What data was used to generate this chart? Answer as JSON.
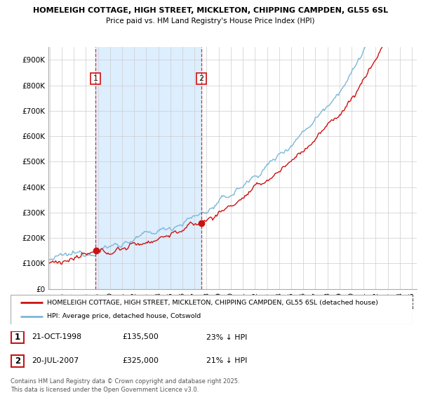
{
  "title_line1": "HOMELEIGH COTTAGE, HIGH STREET, MICKLETON, CHIPPING CAMPDEN, GL55 6SL",
  "title_line2": "Price paid vs. HM Land Registry's House Price Index (HPI)",
  "ylim": [
    0,
    950000
  ],
  "yticks": [
    0,
    100000,
    200000,
    300000,
    400000,
    500000,
    600000,
    700000,
    800000,
    900000
  ],
  "ytick_labels": [
    "£0",
    "£100K",
    "£200K",
    "£300K",
    "£400K",
    "£500K",
    "£600K",
    "£700K",
    "£800K",
    "£900K"
  ],
  "hpi_color": "#7ab8d8",
  "price_color": "#cc1111",
  "vline_color": "#cc1111",
  "shade_color": "#ddeeff",
  "grid_color": "#cccccc",
  "background_color": "#ffffff",
  "legend_label_price": "HOMELEIGH COTTAGE, HIGH STREET, MICKLETON, CHIPPING CAMPDEN, GL55 6SL (detached house)",
  "legend_label_hpi": "HPI: Average price, detached house, Cotswold",
  "transaction1_label": "1",
  "transaction1_date": "21-OCT-1998",
  "transaction1_price": "£135,500",
  "transaction1_hpi": "23% ↓ HPI",
  "transaction1_year": 1998.8,
  "transaction1_value": 135500,
  "transaction2_label": "2",
  "transaction2_date": "20-JUL-2007",
  "transaction2_price": "£325,000",
  "transaction2_hpi": "21% ↓ HPI",
  "transaction2_year": 2007.55,
  "transaction2_value": 325000,
  "footer": "Contains HM Land Registry data © Crown copyright and database right 2025.\nThis data is licensed under the Open Government Licence v3.0.",
  "start_year": 1995,
  "end_year": 2025
}
